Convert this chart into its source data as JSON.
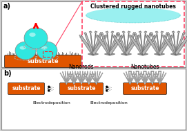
{
  "bg_color": "#d0d0d0",
  "panel_bg": "#ffffff",
  "orange_color": "#e05500",
  "cyan_color": "#30e8e0",
  "cyan_light": "#88eeee",
  "cyan_mid": "#50ddd8",
  "gray_tube": "#b8b8b8",
  "gray_dark": "#686868",
  "gray_mid": "#989898",
  "pink_border": "#ff4466",
  "label_a": "a)",
  "label_b": "b)",
  "title_zoom": "Clustered rugged nanotubes",
  "substrate_text": "substrate",
  "nanorods_text": "Nanorods",
  "nanotubes_text": "Nanotubes",
  "electro1_text": "Electrodeposition",
  "electro2_text": "Electrodeposition",
  "arrow_outline_color": "#ffffff",
  "arrow_fill_color": "#ffffff"
}
